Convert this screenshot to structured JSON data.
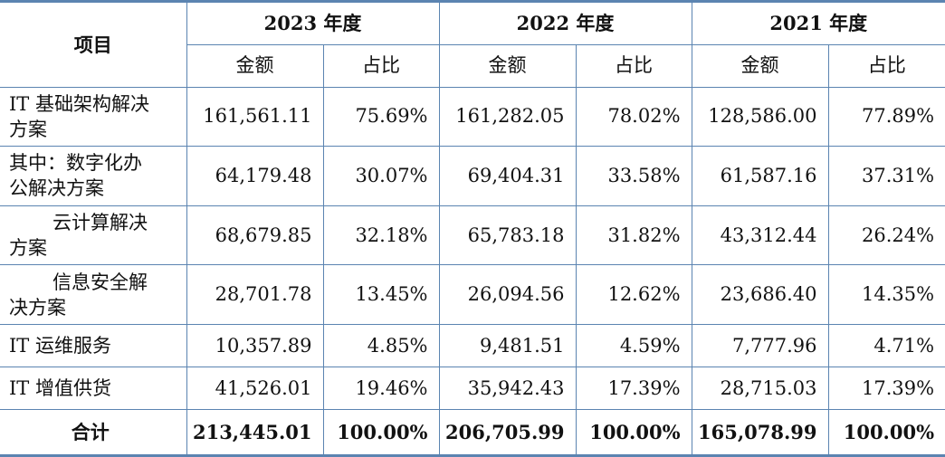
{
  "header": {
    "item_label": "项目",
    "years": [
      "2023 年度",
      "2022 年度",
      "2021 年度"
    ],
    "sub_amount": "金额",
    "sub_ratio": "占比"
  },
  "rows": [
    {
      "label_l1": "IT 基础架构解决",
      "label_l2": "方案",
      "indent": false,
      "v": [
        "161,561.11",
        "75.69%",
        "161,282.05",
        "78.02%",
        "128,586.00",
        "77.89%"
      ]
    },
    {
      "label_l1": "其中：数字化办",
      "label_l2": "公解决方案",
      "indent": false,
      "v": [
        "64,179.48",
        "30.07%",
        "69,404.31",
        "33.58%",
        "61,587.16",
        "37.31%"
      ]
    },
    {
      "label_l1": "云计算解决",
      "label_l2": "方案",
      "indent": true,
      "v": [
        "68,679.85",
        "32.18%",
        "65,783.18",
        "31.82%",
        "43,312.44",
        "26.24%"
      ]
    },
    {
      "label_l1": "信息安全解",
      "label_l2": "决方案",
      "indent": true,
      "v": [
        "28,701.78",
        "13.45%",
        "26,094.56",
        "12.62%",
        "23,686.40",
        "14.35%"
      ]
    },
    {
      "label_l1": "IT 运维服务",
      "label_l2": "",
      "indent": false,
      "v": [
        "10,357.89",
        "4.85%",
        "9,481.51",
        "4.59%",
        "7,777.96",
        "4.71%"
      ]
    },
    {
      "label_l1": "IT 增值供货",
      "label_l2": "",
      "indent": false,
      "v": [
        "41,526.01",
        "19.46%",
        "35,942.43",
        "17.39%",
        "28,715.03",
        "17.39%"
      ]
    }
  ],
  "total": {
    "label": "合计",
    "v": [
      "213,445.01",
      "100.00%",
      "206,705.99",
      "100.00%",
      "165,078.99",
      "100.00%"
    ]
  },
  "colors": {
    "border": "#5b84b1",
    "text": "#111111"
  }
}
